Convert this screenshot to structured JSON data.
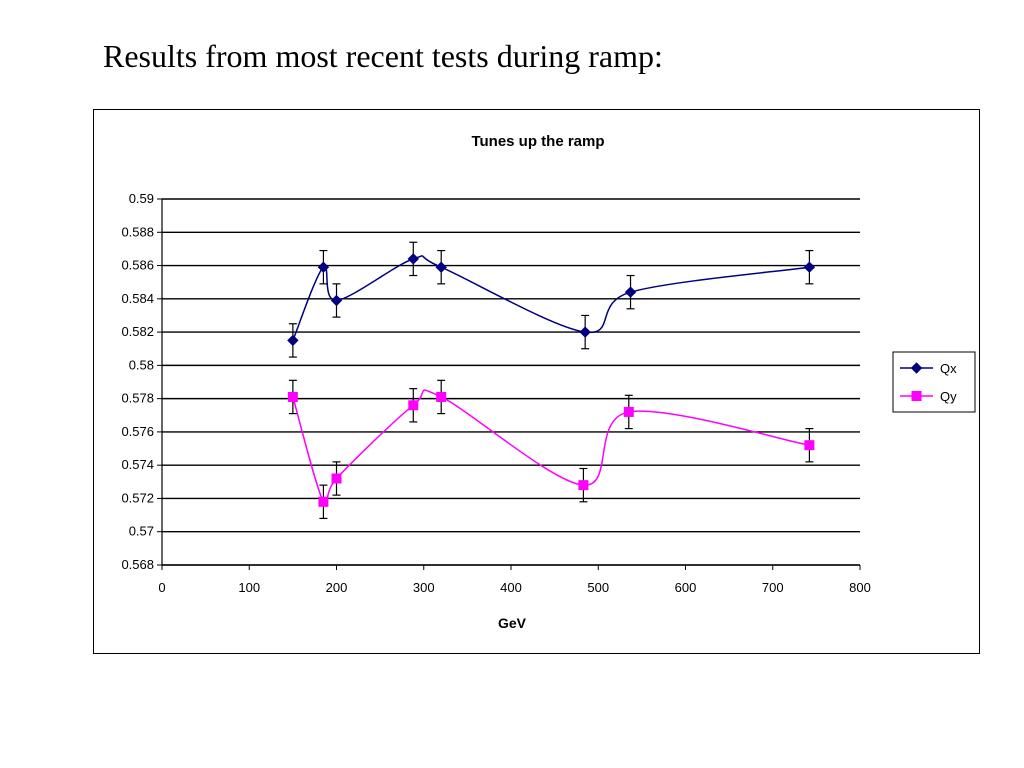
{
  "slide": {
    "title": "Results from most recent tests during ramp:"
  },
  "chart_data": {
    "type": "line",
    "title": "Tunes up the ramp",
    "xlabel": "GeV",
    "ylabel": "",
    "xlim": [
      0,
      800
    ],
    "ylim": [
      0.568,
      0.59
    ],
    "x_ticks": [
      "0",
      "100",
      "200",
      "300",
      "400",
      "500",
      "600",
      "700",
      "800"
    ],
    "y_ticks": [
      "0.568",
      "0.57",
      "0.572",
      "0.574",
      "0.576",
      "0.578",
      "0.58",
      "0.582",
      "0.584",
      "0.586",
      "0.588",
      "0.59"
    ],
    "grid": "horizontal",
    "legend_position": "right",
    "error_bar": 0.001,
    "series": [
      {
        "name": "Qx",
        "color": "#000080",
        "marker": "diamond",
        "x": [
          150,
          185,
          200,
          288,
          320,
          485,
          537,
          742
        ],
        "y": [
          0.5815,
          0.5859,
          0.5839,
          0.5864,
          0.5859,
          0.582,
          0.5844,
          0.5859
        ]
      },
      {
        "name": "Qy",
        "color": "#ff00ff",
        "marker": "square",
        "x": [
          150,
          185,
          200,
          288,
          320,
          483,
          535,
          742
        ],
        "y": [
          0.5781,
          0.5718,
          0.5732,
          0.5776,
          0.5781,
          0.5728,
          0.5772,
          0.5752
        ]
      }
    ]
  }
}
